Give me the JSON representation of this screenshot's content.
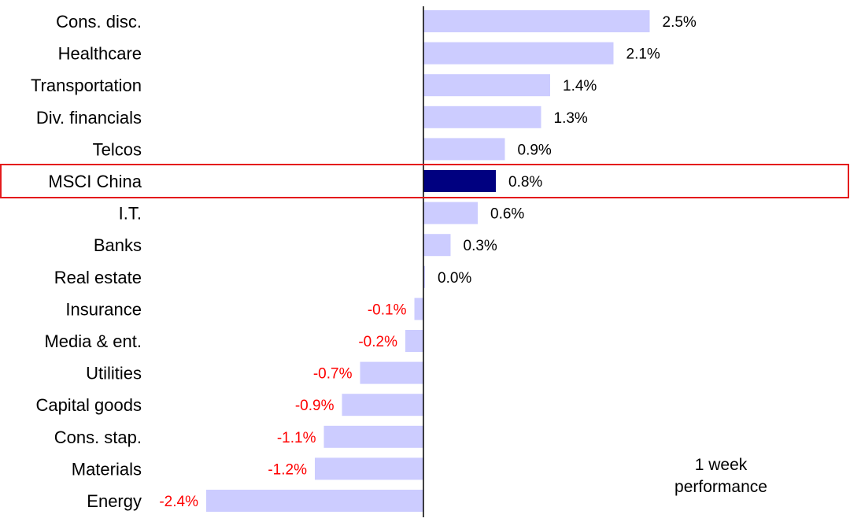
{
  "chart_data": {
    "type": "bar",
    "orientation": "horizontal",
    "categories": [
      "Cons. disc.",
      "Healthcare",
      "Transportation",
      "Div. financials",
      "Telcos",
      "MSCI China",
      "I.T.",
      "Banks",
      "Real estate",
      "Insurance",
      "Media & ent.",
      "Utilities",
      "Capital goods",
      "Cons. stap.",
      "Materials",
      "Energy"
    ],
    "values": [
      2.5,
      2.1,
      1.4,
      1.3,
      0.9,
      0.8,
      0.6,
      0.3,
      0.0,
      -0.1,
      -0.2,
      -0.7,
      -0.9,
      -1.1,
      -1.2,
      -2.4
    ],
    "value_labels": [
      "2.5%",
      "2.1%",
      "1.4%",
      "1.3%",
      "0.9%",
      "0.8%",
      "0.6%",
      "0.3%",
      "0.0%",
      "-0.1%",
      "-0.2%",
      "-0.7%",
      "-0.9%",
      "-1.1%",
      "-1.2%",
      "-2.4%"
    ],
    "highlight_category": "MSCI China",
    "xlim": [
      -2.4,
      3.0
    ],
    "grid": false,
    "legend": "none",
    "annotation_line1": "1 week",
    "annotation_line2": "performance",
    "colors": {
      "bar": "#ccccff",
      "highlight_bar": "#000080",
      "highlight_box": "#e41a1c",
      "negative_label": "#ff0000",
      "positive_label": "#000000",
      "axis": "#000000"
    }
  }
}
